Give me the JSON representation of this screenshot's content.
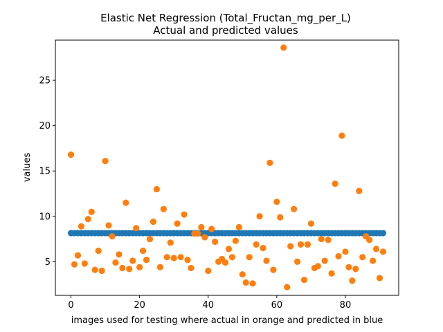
{
  "chart_data": {
    "type": "scatter",
    "title": "Elastic Net Regression (Total_Fructan_mg_per_L)",
    "subtitle": "Actual and predicted values",
    "xlabel": "images used for testing where actual in orange and predicted in blue",
    "ylabel": "values",
    "xlim": [
      -4.55,
      95.55
    ],
    "ylim": [
      1.29,
      29.43
    ],
    "xticks": [
      0,
      20,
      40,
      60,
      80
    ],
    "yticks": [
      5,
      10,
      15,
      20,
      25
    ],
    "grid": false,
    "legend": "none",
    "series": [
      {
        "color": "#1f77b4",
        "x": [
          0,
          1,
          2,
          3,
          4,
          5,
          6,
          7,
          8,
          9,
          10,
          11,
          12,
          13,
          14,
          15,
          16,
          17,
          18,
          19,
          20,
          21,
          22,
          23,
          24,
          25,
          26,
          27,
          28,
          29,
          30,
          31,
          32,
          33,
          34,
          35,
          36,
          37,
          38,
          39,
          40,
          41,
          42,
          43,
          44,
          45,
          46,
          47,
          48,
          49,
          50,
          51,
          52,
          53,
          54,
          55,
          56,
          57,
          58,
          59,
          60,
          61,
          62,
          63,
          64,
          65,
          66,
          67,
          68,
          69,
          70,
          71,
          72,
          73,
          74,
          75,
          76,
          77,
          78,
          79,
          80,
          81,
          82,
          83,
          84,
          85,
          86,
          87,
          88,
          89,
          90,
          91
        ],
        "y": [
          8.15,
          8.15,
          8.15,
          8.15,
          8.15,
          8.15,
          8.15,
          8.15,
          8.15,
          8.15,
          8.15,
          8.15,
          8.15,
          8.15,
          8.15,
          8.15,
          8.15,
          8.15,
          8.15,
          8.15,
          8.15,
          8.15,
          8.15,
          8.15,
          8.15,
          8.15,
          8.15,
          8.15,
          8.15,
          8.15,
          8.15,
          8.15,
          8.15,
          8.15,
          8.15,
          8.15,
          8.15,
          8.15,
          8.15,
          8.15,
          8.15,
          8.15,
          8.15,
          8.15,
          8.15,
          8.15,
          8.15,
          8.15,
          8.15,
          8.15,
          8.15,
          8.15,
          8.15,
          8.15,
          8.15,
          8.15,
          8.15,
          8.15,
          8.15,
          8.15,
          8.15,
          8.15,
          8.15,
          8.15,
          8.15,
          8.15,
          8.15,
          8.15,
          8.15,
          8.15,
          8.15,
          8.15,
          8.15,
          8.15,
          8.15,
          8.15,
          8.15,
          8.15,
          8.15,
          8.15,
          8.15,
          8.15,
          8.15,
          8.15,
          8.15,
          8.15,
          8.15,
          8.15,
          8.15,
          8.15,
          8.15,
          8.15
        ]
      },
      {
        "color": "#ff7f0e",
        "x": [
          0,
          1,
          2,
          3,
          4,
          5,
          6,
          7,
          8,
          9,
          10,
          11,
          12,
          13,
          14,
          15,
          16,
          17,
          18,
          19,
          20,
          21,
          22,
          23,
          24,
          25,
          26,
          27,
          28,
          29,
          30,
          31,
          32,
          33,
          34,
          35,
          36,
          37,
          38,
          39,
          40,
          41,
          42,
          43,
          44,
          45,
          46,
          47,
          48,
          49,
          50,
          51,
          52,
          53,
          54,
          55,
          56,
          57,
          58,
          59,
          60,
          61,
          62,
          63,
          64,
          65,
          66,
          67,
          68,
          69,
          70,
          71,
          72,
          73,
          74,
          75,
          76,
          77,
          78,
          79,
          80,
          81,
          82,
          83,
          84,
          85,
          86,
          87,
          88,
          89,
          90,
          91
        ],
        "y": [
          16.8,
          4.7,
          5.7,
          8.9,
          4.8,
          9.7,
          10.5,
          4.1,
          6.2,
          4.0,
          16.1,
          9.0,
          7.8,
          4.9,
          5.8,
          4.3,
          11.5,
          4.2,
          5.1,
          8.7,
          4.4,
          6.2,
          5.2,
          7.5,
          9.4,
          13.0,
          4.4,
          10.8,
          5.5,
          7.1,
          5.4,
          9.2,
          5.5,
          10.2,
          5.2,
          4.3,
          8.1,
          8.1,
          8.8,
          7.7,
          4.0,
          8.6,
          7.2,
          5.0,
          5.3,
          4.9,
          6.4,
          5.5,
          7.3,
          8.8,
          3.6,
          2.7,
          5.5,
          2.6,
          6.9,
          10.0,
          6.5,
          5.1,
          15.9,
          4.1,
          11.6,
          9.9,
          28.6,
          2.2,
          6.7,
          10.8,
          5.0,
          6.9,
          3.0,
          6.9,
          9.2,
          4.3,
          4.5,
          7.5,
          5.1,
          7.4,
          3.7,
          13.6,
          5.6,
          18.9,
          6.1,
          4.4,
          2.9,
          4.2,
          12.8,
          5.5,
          7.8,
          7.4,
          5.1,
          6.4,
          3.2,
          6.1
        ]
      }
    ]
  }
}
